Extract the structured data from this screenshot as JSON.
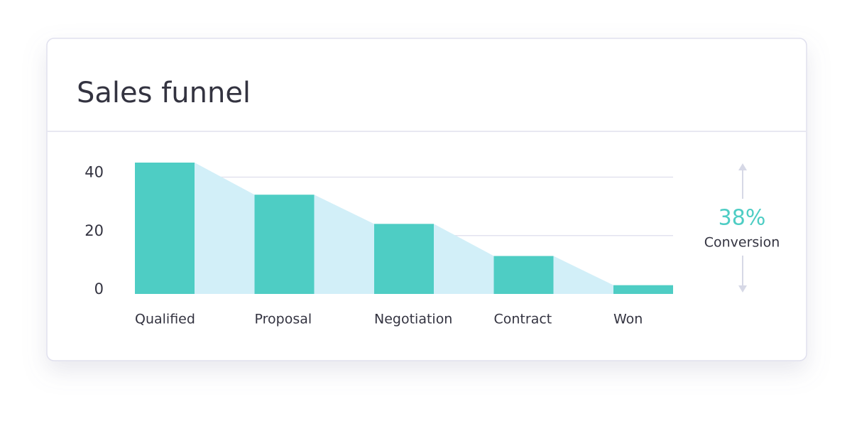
{
  "card": {
    "title": "Sales funnel"
  },
  "chart_data": {
    "type": "funnel-bar",
    "categories": [
      "Qualified",
      "Proposal",
      "Negotiation",
      "Contract",
      "Won"
    ],
    "values": [
      45,
      34,
      24,
      13,
      3
    ],
    "color": "#4ecdc4",
    "area_color": "#d2eff8",
    "ylim": [
      0,
      45
    ],
    "yticks": [
      0,
      20,
      40
    ],
    "grid": true,
    "conversion_value": "38%",
    "conversion_label": "Conversion"
  }
}
